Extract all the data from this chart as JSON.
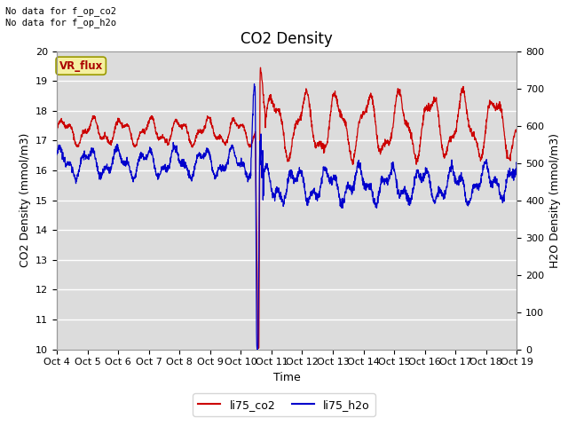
{
  "title": "CO2 Density",
  "xlabel": "Time",
  "ylabel_left": "CO2 Density (mmol/m3)",
  "ylabel_right": "H2O Density (mmol/m3)",
  "top_left_text": "No data for f_op_co2\nNo data for f_op_h2o",
  "annotation_box": "VR_flux",
  "ylim_left": [
    10.0,
    20.0
  ],
  "ylim_right": [
    0,
    800
  ],
  "yticks_left": [
    10.0,
    11.0,
    12.0,
    13.0,
    14.0,
    15.0,
    16.0,
    17.0,
    18.0,
    19.0,
    20.0
  ],
  "yticks_right": [
    0,
    100,
    200,
    300,
    400,
    500,
    600,
    700,
    800
  ],
  "xtick_labels": [
    "Oct 4",
    "Oct 5",
    "Oct 6",
    "Oct 7",
    "Oct 8",
    "Oct 9",
    "Oct 10",
    "Oct 11",
    "Oct 12",
    "Oct 13",
    "Oct 14",
    "Oct 15",
    "Oct 16",
    "Oct 17",
    "Oct 18",
    "Oct 19"
  ],
  "color_co2": "#cc0000",
  "color_h2o": "#0000cc",
  "legend_labels": [
    "li75_co2",
    "li75_h2o"
  ],
  "background_color": "#dcdcdc",
  "grid_color": "#ffffff",
  "title_fontsize": 12,
  "axis_fontsize": 9,
  "tick_fontsize": 8,
  "annotation_color": "#aa0000",
  "annotation_bg": "#f5f0a0",
  "annotation_edge": "#999900"
}
